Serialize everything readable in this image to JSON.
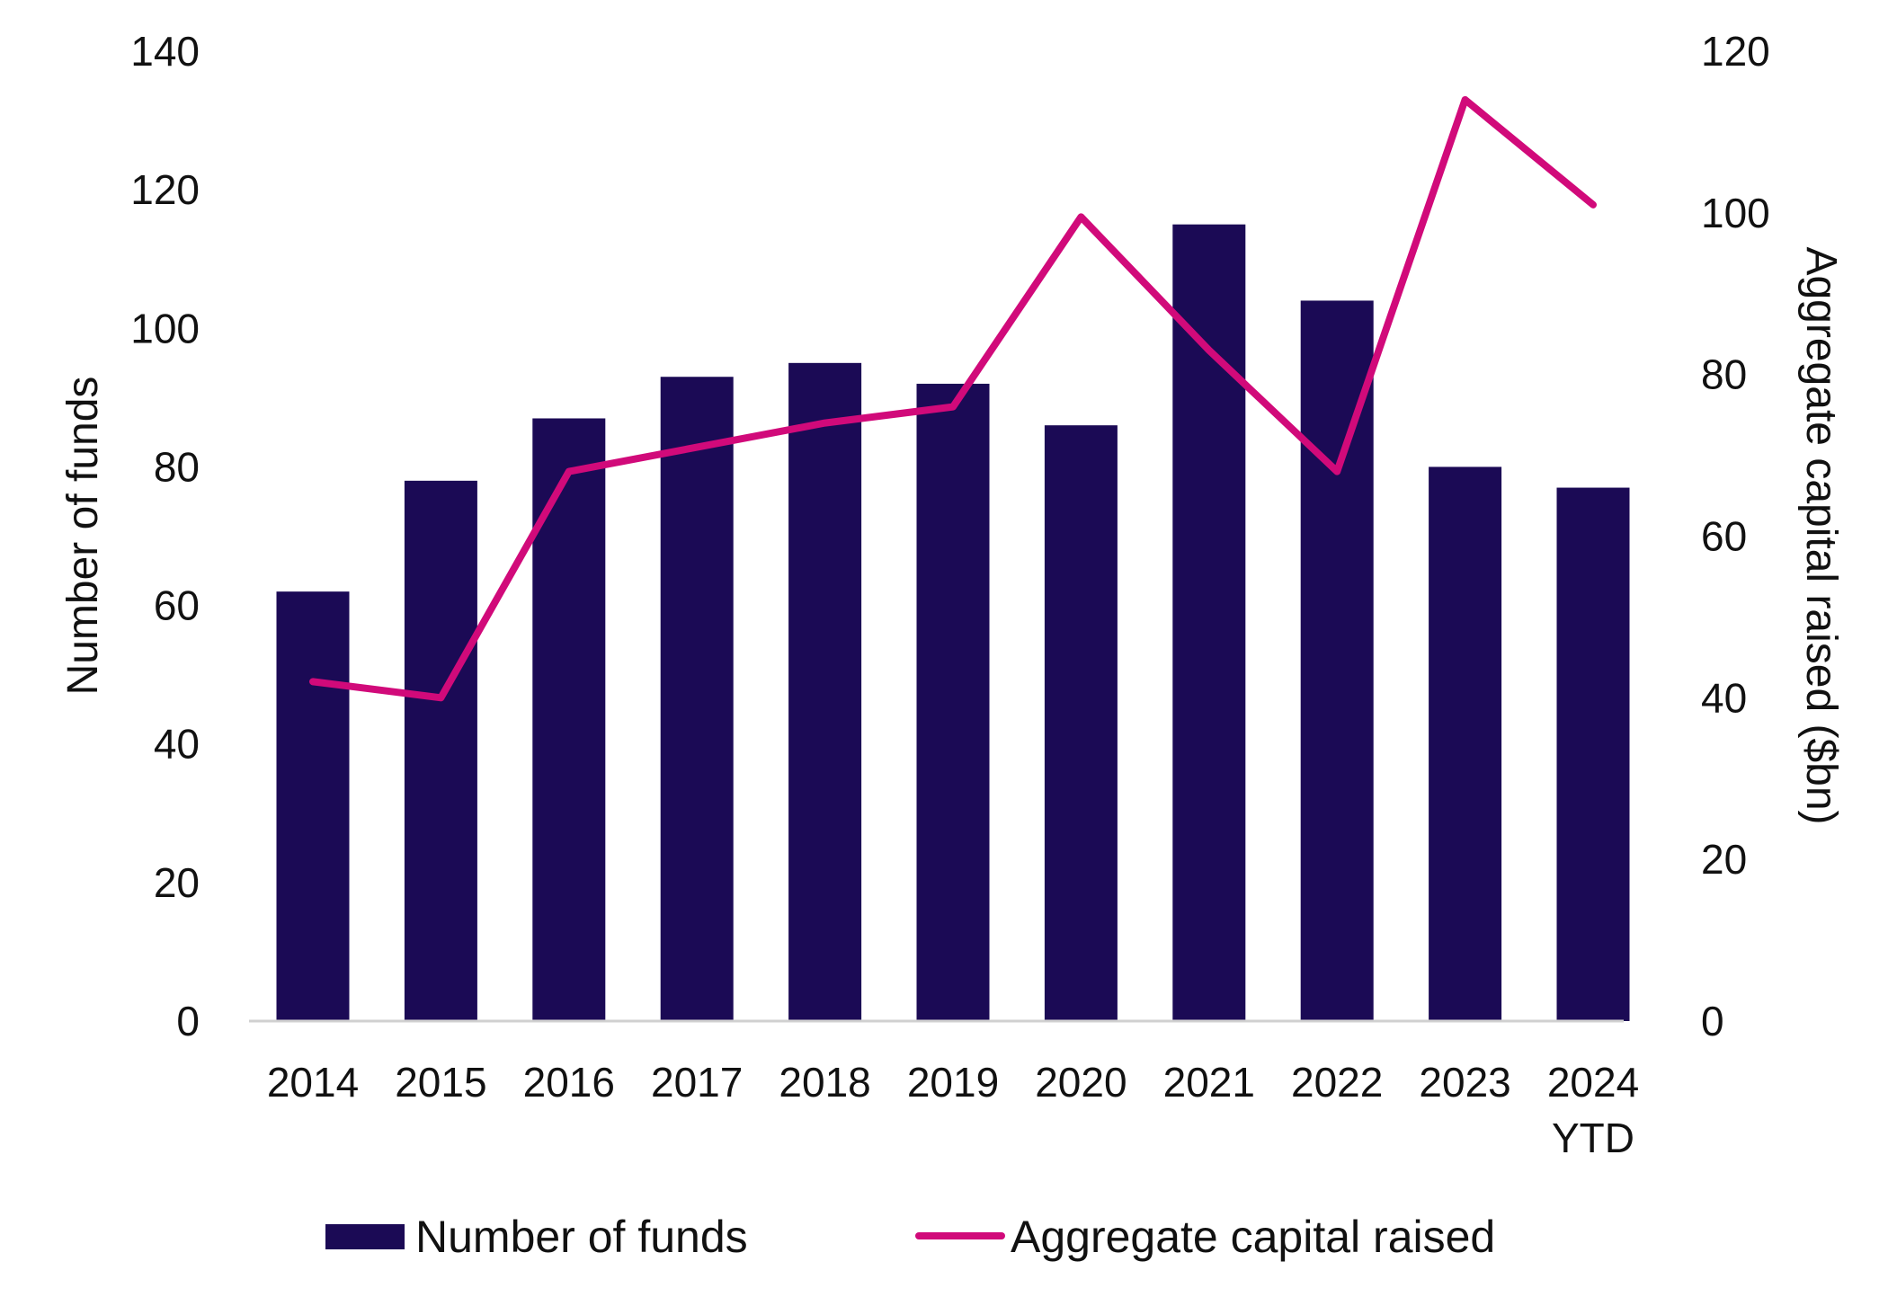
{
  "chart_data": {
    "type": "bar+line",
    "categories": [
      "2014",
      "2015",
      "2016",
      "2017",
      "2018",
      "2019",
      "2020",
      "2021",
      "2022",
      "2023",
      "2024 YTD"
    ],
    "series": [
      {
        "name": "Number of funds",
        "type": "bar",
        "axis": "left",
        "color": "#1b0a55",
        "values": [
          62,
          78,
          87,
          93,
          95,
          92,
          86,
          115,
          104,
          80,
          77
        ]
      },
      {
        "name": "Aggregate capital raised",
        "type": "line",
        "axis": "right",
        "color": "#d10a7a",
        "values": [
          42,
          40,
          68,
          71,
          74,
          76,
          99.5,
          83,
          68,
          114,
          101
        ]
      }
    ],
    "ylabel": "Number of funds",
    "y2label": "Aggregate capital raised ($bn)",
    "ylim": [
      0,
      140
    ],
    "y2lim": [
      0,
      120
    ],
    "yticks": [
      "0",
      "20",
      "40",
      "60",
      "80",
      "100",
      "120",
      "140"
    ],
    "y2ticks": [
      "0",
      "20",
      "40",
      "60",
      "80",
      "100",
      "120"
    ],
    "grid": false,
    "legend": "bottom"
  }
}
